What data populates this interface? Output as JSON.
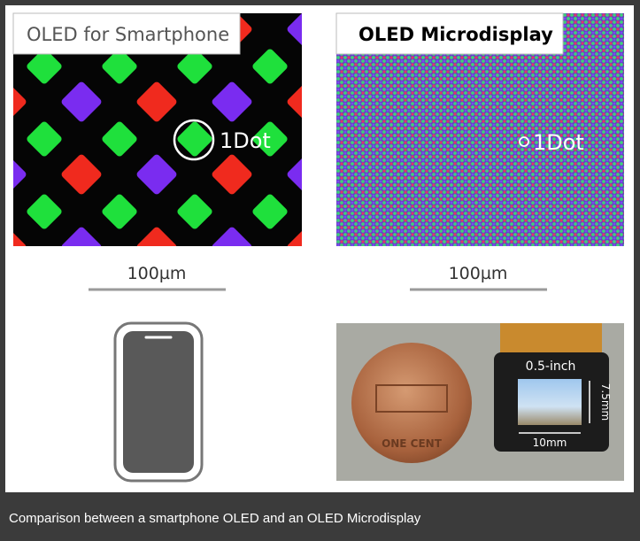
{
  "figure": {
    "left": {
      "label": "OLED for Smartphone",
      "dot_label": "1Dot",
      "scale_label": "100µm"
    },
    "right": {
      "label": "OLED Microdisplay",
      "dot_label": "1Dot",
      "scale_label": "100µm"
    },
    "photo": {
      "coin_text": "ONE CENT",
      "size_label": "0.5-inch",
      "height_label": "7.5mm",
      "width_label": "10mm"
    }
  },
  "caption": "Comparison between a smartphone OLED and an OLED Microdisplay"
}
